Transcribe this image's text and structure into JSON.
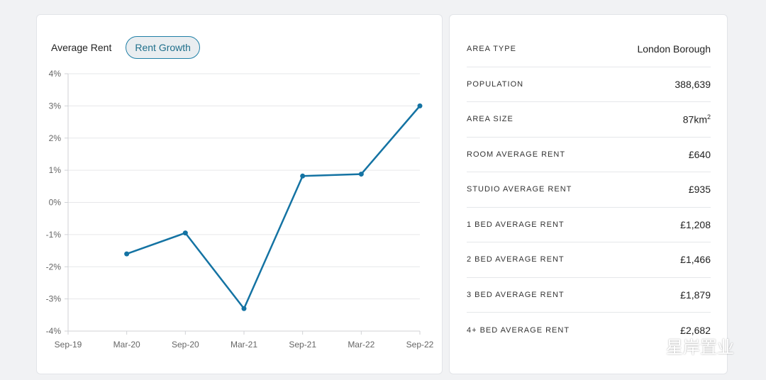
{
  "tabs": [
    {
      "label": "Average Rent",
      "active": false
    },
    {
      "label": "Rent Growth",
      "active": true
    }
  ],
  "chart_data": {
    "type": "line",
    "categories": [
      "Sep-19",
      "Mar-20",
      "Sep-20",
      "Mar-21",
      "Sep-21",
      "Mar-22",
      "Sep-22"
    ],
    "series": [
      {
        "values": [
          null,
          -1.6,
          -0.95,
          -3.3,
          0.82,
          0.88,
          3.0
        ]
      }
    ],
    "ylim": [
      -4,
      4
    ],
    "yticks": [
      4,
      3,
      2,
      1,
      0,
      -1,
      -2,
      -3,
      -4
    ],
    "ytick_labels": [
      "4%",
      "3%",
      "2%",
      "1%",
      "0%",
      "-1%",
      "-2%",
      "-3%",
      "-4%"
    ],
    "grid": true,
    "line_color": "#1473a3"
  },
  "info": {
    "rows": [
      {
        "label": "AREA TYPE",
        "value": "London Borough"
      },
      {
        "label": "POPULATION",
        "value": "388,639"
      },
      {
        "label": "AREA SIZE",
        "value": "87km",
        "sup": "2"
      },
      {
        "label": "ROOM AVERAGE RENT",
        "value": "£640"
      },
      {
        "label": "STUDIO AVERAGE RENT",
        "value": "£935"
      },
      {
        "label": "1 BED AVERAGE RENT",
        "value": "£1,208"
      },
      {
        "label": "2 BED AVERAGE RENT",
        "value": "£1,466"
      },
      {
        "label": "3 BED AVERAGE RENT",
        "value": "£1,879"
      },
      {
        "label": "4+ BED AVERAGE RENT",
        "value": "£2,682"
      }
    ]
  },
  "watermark": {
    "text": "星岸置业",
    "icon": "wechat-icon"
  }
}
